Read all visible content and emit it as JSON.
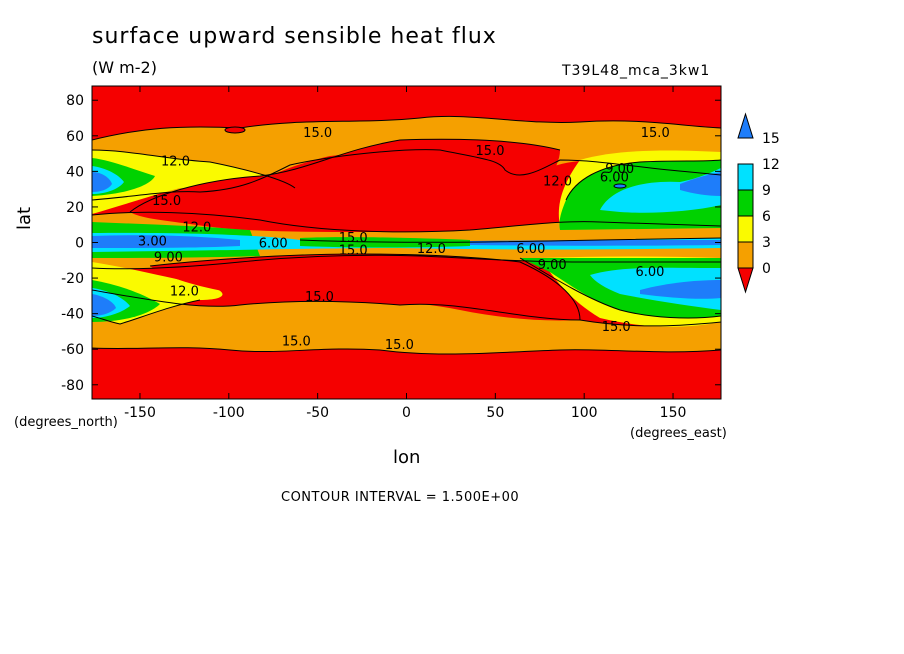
{
  "chart_data": {
    "type": "heatmap",
    "title": "surface upward sensible heat flux",
    "units": "(W m-2)",
    "run_label": "T39L48_mca_3kw1",
    "xlabel": "lon",
    "ylabel": "lat",
    "x_units_label": "(degrees_east)",
    "y_units_label": "(degrees_north)",
    "footer": "CONTOUR INTERVAL = 1.500E+00",
    "xlim": [
      -177,
      177
    ],
    "ylim": [
      -88,
      88
    ],
    "x_ticks": [
      -150,
      -100,
      -50,
      0,
      50,
      100,
      150
    ],
    "y_ticks": [
      80,
      60,
      40,
      20,
      0,
      -20,
      -40,
      -60,
      -80
    ],
    "colorbar": {
      "levels": [
        0,
        3,
        6,
        9,
        12,
        15
      ],
      "colors": [
        "#1e7dfa",
        "#00e1ff",
        "#00d200",
        "#fafa00",
        "#f5a000",
        "#f50000"
      ]
    },
    "contour_labels": [
      {
        "text": "15.0",
        "lon": -50,
        "lat": 62
      },
      {
        "text": "15.0",
        "lon": 47,
        "lat": 52
      },
      {
        "text": "15.0",
        "lon": 140,
        "lat": 62
      },
      {
        "text": "12.0",
        "lon": -130,
        "lat": 46
      },
      {
        "text": "12.0",
        "lon": 85,
        "lat": 35
      },
      {
        "text": "9.00",
        "lon": 120,
        "lat": 42
      },
      {
        "text": "6.00",
        "lon": 117,
        "lat": 37
      },
      {
        "text": "15.0",
        "lon": -135,
        "lat": 24
      },
      {
        "text": "12.0",
        "lon": -118,
        "lat": 9
      },
      {
        "text": "3.00",
        "lon": -143,
        "lat": 1
      },
      {
        "text": "6.00",
        "lon": -75,
        "lat": 0
      },
      {
        "text": "15.0",
        "lon": -30,
        "lat": 3
      },
      {
        "text": "15.0",
        "lon": -30,
        "lat": -4
      },
      {
        "text": "12.0",
        "lon": 14,
        "lat": -3
      },
      {
        "text": "6.00",
        "lon": 70,
        "lat": -3
      },
      {
        "text": "9.00",
        "lon": 82,
        "lat": -12
      },
      {
        "text": "9.00",
        "lon": -134,
        "lat": -8
      },
      {
        "text": "12.0",
        "lon": -125,
        "lat": -27
      },
      {
        "text": "15.0",
        "lon": -49,
        "lat": -30
      },
      {
        "text": "6.00",
        "lon": 137,
        "lat": -16
      },
      {
        "text": "15.0",
        "lon": 118,
        "lat": -47
      },
      {
        "text": "15.0",
        "lon": -62,
        "lat": -55
      },
      {
        "text": "15.0",
        "lon": -4,
        "lat": -57
      }
    ]
  }
}
